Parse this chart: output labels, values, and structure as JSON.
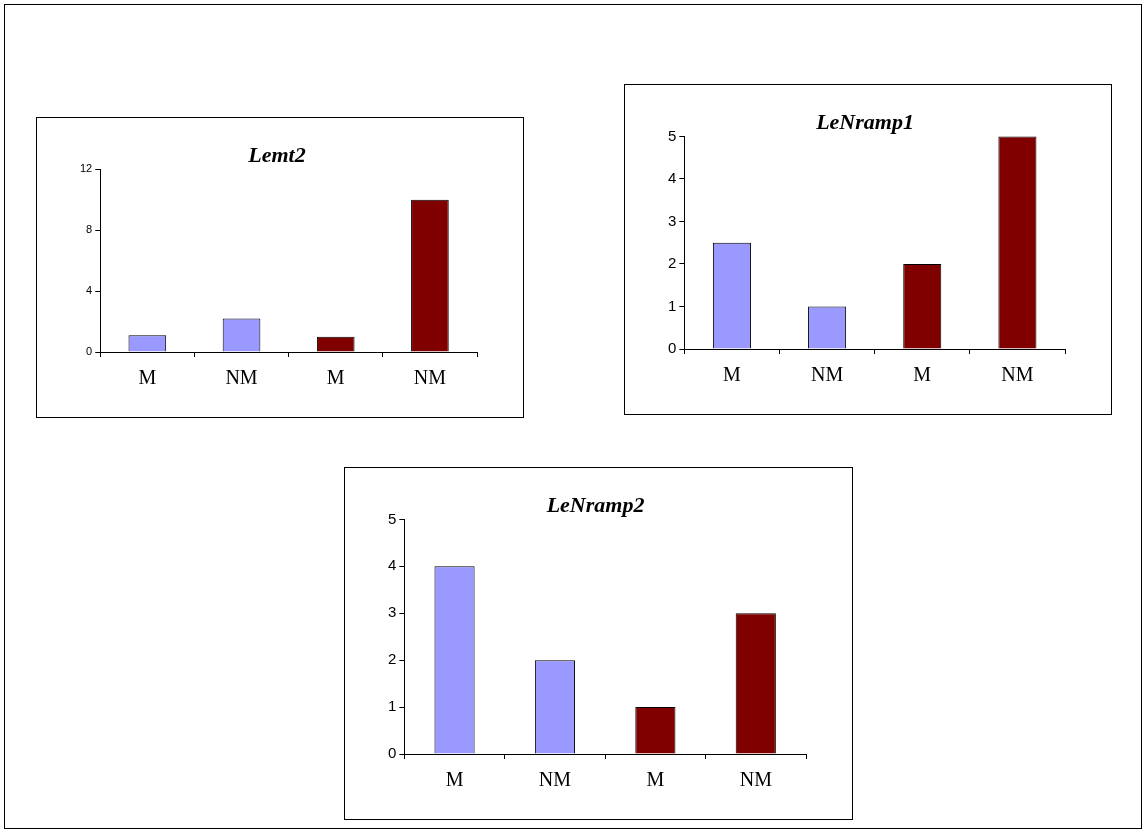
{
  "chart_data": [
    {
      "type": "bar",
      "title": "Lemt2",
      "categories": [
        "M",
        "NM",
        "M",
        "NM"
      ],
      "values": [
        1.1,
        2.2,
        1.0,
        10.0
      ],
      "colors": [
        "#9999ff",
        "#9999ff",
        "#800000",
        "#800000"
      ],
      "ylim": [
        0,
        12
      ],
      "yticks": [
        0,
        4,
        8,
        12
      ],
      "grid": false
    },
    {
      "type": "bar",
      "title": "LeNramp1",
      "categories": [
        "M",
        "NM",
        "M",
        "NM"
      ],
      "values": [
        2.5,
        1.0,
        2.0,
        5.0
      ],
      "colors": [
        "#9999ff",
        "#9999ff",
        "#800000",
        "#800000"
      ],
      "ylim": [
        0,
        5
      ],
      "yticks": [
        0,
        1,
        2,
        3,
        4,
        5
      ],
      "grid": false
    },
    {
      "type": "bar",
      "title": "LeNramp2",
      "categories": [
        "M",
        "NM",
        "M",
        "NM"
      ],
      "values": [
        4.0,
        2.0,
        1.0,
        3.0
      ],
      "colors": [
        "#9999ff",
        "#9999ff",
        "#800000",
        "#800000"
      ],
      "ylim": [
        0,
        5
      ],
      "yticks": [
        0,
        1,
        2,
        3,
        4,
        5
      ],
      "grid": false
    }
  ]
}
